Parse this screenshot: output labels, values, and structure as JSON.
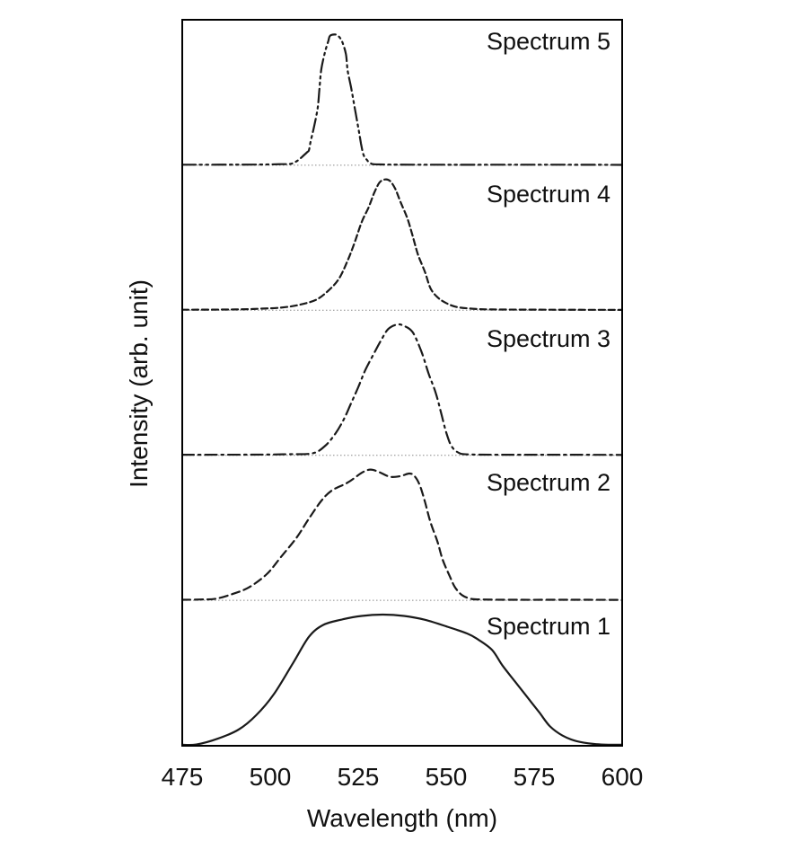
{
  "figure": {
    "background_color": "#ffffff",
    "frame_color": "#000000",
    "curve_color": "#1a1a1a",
    "baseline_dot_color": "#8a8a8a"
  },
  "axes": {
    "x_label": "Wavelength (nm)",
    "y_label": "Intensity (arb. unit)",
    "x_tick_labels": [
      "475",
      "500",
      "525",
      "550",
      "575",
      "600"
    ]
  },
  "chart_data": {
    "type": "line",
    "title": "",
    "xlabel": "Wavelength (nm)",
    "ylabel": "Intensity (arb. unit)",
    "x_range": [
      475,
      600
    ],
    "x_ticks": [
      475,
      500,
      525,
      550,
      575,
      600
    ],
    "grid": false,
    "legend_position": "none",
    "layout": "stacked-offset",
    "y_unit": "arbitrary, each spectrum normalized to 1 and vertically offset",
    "series": [
      {
        "name": "Spectrum 1",
        "line_style": "solid",
        "offset_level": 0,
        "points": [
          [
            475,
            0.004
          ],
          [
            479,
            0.006
          ],
          [
            485,
            0.05
          ],
          [
            491,
            0.12
          ],
          [
            496,
            0.23
          ],
          [
            501,
            0.39
          ],
          [
            506.5,
            0.63
          ],
          [
            511,
            0.83
          ],
          [
            515,
            0.92
          ],
          [
            520,
            0.96
          ],
          [
            526,
            0.99
          ],
          [
            532,
            1.0
          ],
          [
            538,
            0.99
          ],
          [
            544,
            0.96
          ],
          [
            550,
            0.91
          ],
          [
            556,
            0.855
          ],
          [
            559,
            0.81
          ],
          [
            563,
            0.73
          ],
          [
            566,
            0.61
          ],
          [
            569.5,
            0.49
          ],
          [
            573,
            0.37
          ],
          [
            576.5,
            0.25
          ],
          [
            579.5,
            0.145
          ],
          [
            583,
            0.075
          ],
          [
            587,
            0.032
          ],
          [
            592,
            0.01
          ],
          [
            596,
            0.005
          ],
          [
            600,
            0.004
          ]
        ]
      },
      {
        "name": "Spectrum 2",
        "line_style": "dashed",
        "offset_level": 1,
        "points": [
          [
            475,
            0.004
          ],
          [
            480,
            0.006
          ],
          [
            484.5,
            0.012
          ],
          [
            489.5,
            0.05
          ],
          [
            494,
            0.1
          ],
          [
            499,
            0.2
          ],
          [
            503,
            0.33
          ],
          [
            507.5,
            0.48
          ],
          [
            511,
            0.625
          ],
          [
            514.5,
            0.76
          ],
          [
            517.5,
            0.84
          ],
          [
            522,
            0.9
          ],
          [
            526,
            0.975
          ],
          [
            528.5,
            1.0
          ],
          [
            531,
            0.98
          ],
          [
            534,
            0.945
          ],
          [
            537,
            0.95
          ],
          [
            539.5,
            0.97
          ],
          [
            541,
            0.95
          ],
          [
            542.5,
            0.88
          ],
          [
            544,
            0.75
          ],
          [
            545.5,
            0.6
          ],
          [
            547.5,
            0.45
          ],
          [
            549,
            0.31
          ],
          [
            551,
            0.185
          ],
          [
            552.5,
            0.1
          ],
          [
            554.5,
            0.04
          ],
          [
            557,
            0.012
          ],
          [
            560,
            0.006
          ],
          [
            570,
            0.004
          ],
          [
            585,
            0.004
          ],
          [
            600,
            0.003
          ]
        ]
      },
      {
        "name": "Spectrum 3",
        "line_style": "dash-dot",
        "offset_level": 2,
        "points": [
          [
            475,
            0.004
          ],
          [
            495,
            0.005
          ],
          [
            505,
            0.008
          ],
          [
            512,
            0.015
          ],
          [
            515.5,
            0.07
          ],
          [
            518.5,
            0.165
          ],
          [
            521,
            0.28
          ],
          [
            523,
            0.4
          ],
          [
            525,
            0.52
          ],
          [
            527,
            0.65
          ],
          [
            529.5,
            0.78
          ],
          [
            531.5,
            0.88
          ],
          [
            533.5,
            0.965
          ],
          [
            536,
            1.0
          ],
          [
            538,
            0.99
          ],
          [
            540.5,
            0.94
          ],
          [
            543,
            0.79
          ],
          [
            545,
            0.625
          ],
          [
            547,
            0.48
          ],
          [
            548.5,
            0.33
          ],
          [
            550,
            0.175
          ],
          [
            551.5,
            0.07
          ],
          [
            553.5,
            0.02
          ],
          [
            556,
            0.007
          ],
          [
            565,
            0.004
          ],
          [
            580,
            0.004
          ],
          [
            600,
            0.003
          ]
        ]
      },
      {
        "name": "Spectrum 4",
        "line_style": "short-dashed",
        "offset_level": 3,
        "points": [
          [
            475,
            0.004
          ],
          [
            490,
            0.006
          ],
          [
            497,
            0.012
          ],
          [
            503,
            0.02
          ],
          [
            508,
            0.04
          ],
          [
            513,
            0.08
          ],
          [
            516.5,
            0.15
          ],
          [
            519.5,
            0.24
          ],
          [
            522,
            0.38
          ],
          [
            524,
            0.52
          ],
          [
            526,
            0.675
          ],
          [
            528,
            0.79
          ],
          [
            529.5,
            0.895
          ],
          [
            531,
            0.975
          ],
          [
            532.5,
            1.0
          ],
          [
            534,
            0.99
          ],
          [
            535.5,
            0.93
          ],
          [
            537,
            0.83
          ],
          [
            539,
            0.7
          ],
          [
            540.5,
            0.565
          ],
          [
            542,
            0.425
          ],
          [
            544,
            0.29
          ],
          [
            545.5,
            0.17
          ],
          [
            547.5,
            0.1
          ],
          [
            550,
            0.055
          ],
          [
            553,
            0.025
          ],
          [
            557.5,
            0.012
          ],
          [
            563,
            0.006
          ],
          [
            580,
            0.004
          ],
          [
            600,
            0.003
          ]
        ]
      },
      {
        "name": "Spectrum 5",
        "line_style": "dash-dot-dot",
        "offset_level": 4,
        "points": [
          [
            475,
            0.004
          ],
          [
            495,
            0.005
          ],
          [
            503,
            0.008
          ],
          [
            506,
            0.012
          ],
          [
            508,
            0.04
          ],
          [
            509.5,
            0.075
          ],
          [
            510.5,
            0.1
          ],
          [
            511,
            0.115
          ],
          [
            511.5,
            0.185
          ],
          [
            512.5,
            0.3
          ],
          [
            513.5,
            0.44
          ],
          [
            514,
            0.59
          ],
          [
            514.5,
            0.73
          ],
          [
            515.5,
            0.86
          ],
          [
            516.5,
            0.95
          ],
          [
            517,
            0.99
          ],
          [
            518.5,
            1.0
          ],
          [
            519.5,
            0.985
          ],
          [
            520.5,
            0.94
          ],
          [
            521.5,
            0.85
          ],
          [
            522,
            0.725
          ],
          [
            523,
            0.59
          ],
          [
            524,
            0.44
          ],
          [
            525,
            0.29
          ],
          [
            525.8,
            0.165
          ],
          [
            526.5,
            0.08
          ],
          [
            527.5,
            0.04
          ],
          [
            528.5,
            0.015
          ],
          [
            531,
            0.006
          ],
          [
            545,
            0.004
          ],
          [
            575,
            0.004
          ],
          [
            600,
            0.003
          ]
        ]
      }
    ]
  }
}
